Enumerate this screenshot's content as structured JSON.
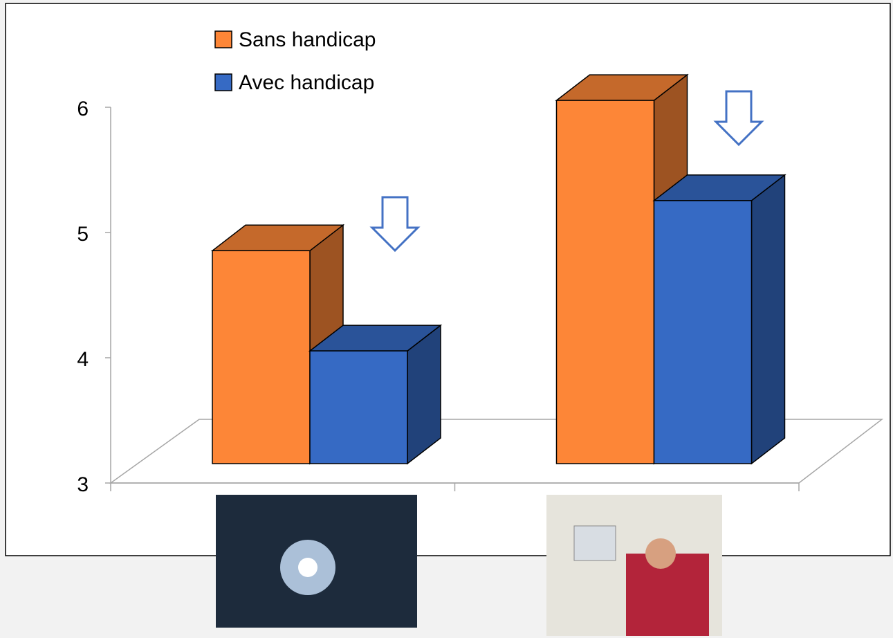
{
  "chart_data": {
    "type": "bar3d",
    "categories": [
      null,
      null
    ],
    "series": [
      {
        "name": "Sans handicap",
        "color": "#fd8637",
        "values": [
          4.7,
          5.9
        ]
      },
      {
        "name": "Avec handicap",
        "color": "#366ac4",
        "values": [
          3.9,
          5.1
        ]
      }
    ],
    "ylim": [
      3,
      6
    ],
    "yticks": [
      3,
      4,
      5,
      6
    ],
    "legend": "top-left"
  }
}
